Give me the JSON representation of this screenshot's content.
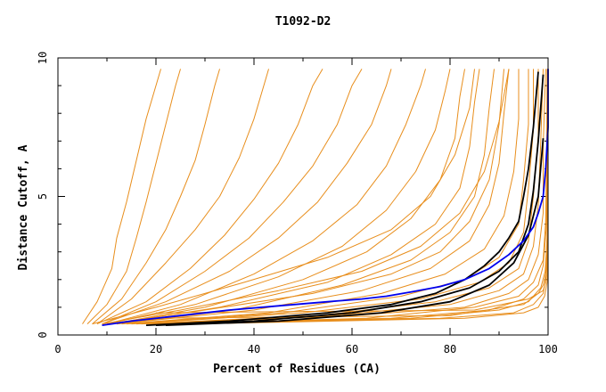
{
  "chart_data": {
    "type": "line",
    "title": "T1092-D2",
    "xlabel": "Percent of Residues (CA)",
    "ylabel": "Distance Cutoff, A",
    "xlim": [
      0,
      100
    ],
    "ylim": [
      0,
      10
    ],
    "x_ticks": [
      0,
      20,
      40,
      60,
      80,
      100
    ],
    "y_ticks": [
      0,
      5,
      10
    ],
    "grid": false,
    "colors": {
      "models": "#e88e1c",
      "highlight_black": "#000000",
      "highlight_blue": "#0000ee"
    },
    "series": [
      {
        "color": "#e88e1c",
        "x": [
          5,
          8,
          11,
          12,
          14,
          16,
          18,
          20,
          21
        ],
        "y": [
          0.4,
          1.2,
          2.4,
          3.5,
          4.8,
          6.3,
          7.8,
          9.0,
          9.6
        ]
      },
      {
        "color": "#e88e1c",
        "x": [
          6,
          10,
          14,
          16,
          18,
          20,
          22,
          24,
          25
        ],
        "y": [
          0.4,
          1.1,
          2.3,
          3.5,
          4.8,
          6.2,
          7.6,
          9.0,
          9.6
        ]
      },
      {
        "color": "#e88e1c",
        "x": [
          7,
          13,
          18,
          22,
          25,
          28,
          30,
          32,
          33
        ],
        "y": [
          0.4,
          1.3,
          2.6,
          3.8,
          5.0,
          6.3,
          7.6,
          9.0,
          9.6
        ]
      },
      {
        "color": "#e88e1c",
        "x": [
          8,
          15,
          22,
          28,
          33,
          37,
          40,
          42,
          43
        ],
        "y": [
          0.4,
          1.3,
          2.6,
          3.8,
          5.0,
          6.4,
          7.8,
          9.0,
          9.6
        ]
      },
      {
        "color": "#e88e1c",
        "x": [
          8,
          18,
          27,
          34,
          40,
          45,
          49,
          52,
          54
        ],
        "y": [
          0.4,
          1.2,
          2.4,
          3.6,
          4.9,
          6.2,
          7.6,
          9.0,
          9.6
        ]
      },
      {
        "color": "#e88e1c",
        "x": [
          9,
          20,
          30,
          39,
          46,
          52,
          57,
          60,
          62
        ],
        "y": [
          0.4,
          1.2,
          2.3,
          3.5,
          4.8,
          6.1,
          7.6,
          9.0,
          9.6
        ]
      },
      {
        "color": "#e88e1c",
        "x": [
          9,
          22,
          35,
          45,
          53,
          59,
          64,
          67,
          68
        ],
        "y": [
          0.4,
          1.2,
          2.3,
          3.5,
          4.8,
          6.2,
          7.6,
          9.0,
          9.6
        ]
      },
      {
        "color": "#e88e1c",
        "x": [
          10,
          25,
          40,
          52,
          61,
          67,
          71,
          74,
          75
        ],
        "y": [
          0.4,
          1.1,
          2.2,
          3.4,
          4.7,
          6.1,
          7.6,
          9.0,
          9.6
        ]
      },
      {
        "color": "#e88e1c",
        "x": [
          10,
          28,
          45,
          58,
          67,
          73,
          77,
          79,
          80
        ],
        "y": [
          0.4,
          1.1,
          2.1,
          3.2,
          4.5,
          5.9,
          7.4,
          8.8,
          9.6
        ]
      },
      {
        "color": "#e88e1c",
        "x": [
          11,
          30,
          50,
          63,
          72,
          78,
          81,
          82,
          83
        ],
        "y": [
          0.4,
          1.0,
          2.0,
          3.0,
          4.2,
          5.6,
          7.1,
          8.6,
          9.6
        ]
      },
      {
        "color": "#e88e1c",
        "x": [
          11,
          33,
          55,
          68,
          77,
          82,
          84,
          85,
          86
        ],
        "y": [
          0.4,
          1.0,
          1.9,
          2.9,
          4.0,
          5.3,
          6.8,
          8.4,
          9.6
        ]
      },
      {
        "color": "#e88e1c",
        "x": [
          12,
          36,
          58,
          72,
          80,
          85,
          87,
          88,
          89
        ],
        "y": [
          0.4,
          0.9,
          1.8,
          2.7,
          3.7,
          5.0,
          6.5,
          8.2,
          9.6
        ]
      },
      {
        "color": "#e88e1c",
        "x": [
          12,
          40,
          62,
          76,
          84,
          88,
          90,
          91,
          92
        ],
        "y": [
          0.4,
          0.9,
          1.6,
          2.4,
          3.4,
          4.7,
          6.2,
          8.0,
          9.6
        ]
      },
      {
        "color": "#e88e1c",
        "x": [
          13,
          43,
          66,
          79,
          87,
          91,
          93,
          94,
          94
        ],
        "y": [
          0.4,
          0.8,
          1.5,
          2.2,
          3.1,
          4.3,
          5.9,
          7.8,
          9.6
        ]
      },
      {
        "color": "#e88e1c",
        "x": [
          14,
          46,
          70,
          83,
          90,
          94,
          95,
          96,
          96
        ],
        "y": [
          0.4,
          0.8,
          1.4,
          2.0,
          2.8,
          4.0,
          5.6,
          7.6,
          9.6
        ]
      },
      {
        "color": "#e88e1c",
        "x": [
          15,
          50,
          74,
          86,
          92,
          95,
          96,
          97,
          97
        ],
        "y": [
          0.4,
          0.8,
          1.3,
          1.9,
          2.6,
          3.7,
          5.3,
          7.4,
          9.6
        ]
      },
      {
        "color": "#e88e1c",
        "x": [
          16,
          53,
          77,
          88,
          94,
          96,
          97,
          98,
          98
        ],
        "y": [
          0.4,
          0.7,
          1.2,
          1.7,
          2.4,
          3.4,
          5.0,
          7.2,
          9.6
        ]
      },
      {
        "color": "#e88e1c",
        "x": [
          17,
          56,
          80,
          90,
          95,
          97,
          98,
          98.5,
          99
        ],
        "y": [
          0.4,
          0.7,
          1.1,
          1.6,
          2.2,
          3.2,
          4.7,
          7.0,
          9.6
        ]
      },
      {
        "color": "#e88e1c",
        "x": [
          18,
          60,
          83,
          92,
          96,
          98,
          99,
          99,
          99.5
        ],
        "y": [
          0.4,
          0.7,
          1.0,
          1.5,
          2.0,
          2.9,
          4.4,
          6.8,
          9.6
        ]
      },
      {
        "color": "#e88e1c",
        "x": [
          19,
          63,
          85,
          94,
          97,
          99,
          99.5,
          99.7,
          99.8
        ],
        "y": [
          0.4,
          0.6,
          1.0,
          1.4,
          1.9,
          2.7,
          4.1,
          6.6,
          9.6
        ]
      },
      {
        "color": "#e88e1c",
        "x": [
          20,
          68,
          88,
          95,
          98,
          99,
          99.6,
          99.8,
          99.9
        ],
        "y": [
          0.4,
          0.6,
          0.9,
          1.3,
          1.8,
          2.5,
          3.8,
          6.4,
          9.6
        ]
      },
      {
        "color": "#e88e1c",
        "x": [
          22,
          72,
          90,
          96,
          98.5,
          99.4,
          99.8,
          99.9,
          100
        ],
        "y": [
          0.4,
          0.6,
          0.9,
          1.2,
          1.7,
          2.3,
          3.5,
          6.2,
          9.6
        ]
      },
      {
        "color": "#e88e1c",
        "x": [
          25,
          78,
          93,
          97,
          99,
          99.6,
          99.9,
          100,
          100
        ],
        "y": [
          0.4,
          0.6,
          0.8,
          1.1,
          1.5,
          2.1,
          3.2,
          6.0,
          9.6
        ]
      },
      {
        "color": "#e88e1c",
        "x": [
          28,
          83,
          95,
          98,
          99.3,
          99.8,
          100,
          100,
          100
        ],
        "y": [
          0.4,
          0.6,
          0.8,
          1.0,
          1.4,
          1.9,
          2.9,
          5.8,
          9.6
        ]
      },
      {
        "color": "#e88e1c",
        "x": [
          18,
          80,
          95,
          98,
          99,
          99.5,
          99.8,
          100
        ],
        "y": [
          0.6,
          0.7,
          1.1,
          1.5,
          1.8,
          2.2,
          3.5,
          9.6
        ]
      },
      {
        "color": "#e88e1c",
        "x": [
          20,
          85,
          96,
          99,
          99.5,
          100,
          100
        ],
        "y": [
          0.8,
          0.9,
          1.3,
          1.6,
          1.9,
          3.0,
          9.6
        ]
      },
      {
        "color": "#e88e1c",
        "x": [
          9,
          25,
          45,
          62,
          74,
          82,
          87,
          90,
          92
        ],
        "y": [
          0.4,
          0.9,
          1.6,
          2.3,
          3.2,
          4.4,
          5.9,
          7.7,
          9.6
        ]
      },
      {
        "color": "#e88e1c",
        "x": [
          10,
          30,
          52,
          68,
          78,
          84,
          88,
          90,
          91
        ],
        "y": [
          0.4,
          0.9,
          1.5,
          2.2,
          3.0,
          4.1,
          5.6,
          7.6,
          9.6
        ]
      },
      {
        "color": "#e88e1c",
        "x": [
          7,
          20,
          38,
          55,
          68,
          76,
          81,
          84,
          85
        ],
        "y": [
          0.4,
          1.0,
          1.9,
          2.8,
          3.8,
          5.0,
          6.5,
          8.2,
          9.6
        ]
      },
      {
        "color": "#000000",
        "x": [
          18,
          35,
          55,
          68,
          77,
          83,
          87,
          90,
          92,
          94,
          95,
          96,
          97,
          98
        ],
        "y": [
          0.35,
          0.5,
          0.8,
          1.1,
          1.5,
          2.0,
          2.5,
          3.0,
          3.5,
          4.1,
          5.0,
          6.0,
          7.5,
          9.5
        ]
      },
      {
        "color": "#000000",
        "x": [
          20,
          40,
          60,
          74,
          84,
          90,
          94,
          96,
          97,
          98,
          99
        ],
        "y": [
          0.35,
          0.5,
          0.8,
          1.2,
          1.7,
          2.3,
          3.0,
          4.0,
          5.2,
          7.0,
          9.4
        ]
      },
      {
        "color": "#000000",
        "x": [
          22,
          45,
          66,
          80,
          88,
          93,
          96,
          98,
          99
        ],
        "y": [
          0.35,
          0.5,
          0.8,
          1.2,
          1.8,
          2.6,
          3.6,
          5.0,
          7.1
        ]
      },
      {
        "color": "#0000ee",
        "x": [
          9,
          15,
          25,
          35,
          45,
          55,
          62,
          67,
          72,
          78,
          83,
          88,
          92,
          95,
          97,
          98,
          99,
          99.5,
          100,
          100
        ],
        "y": [
          0.35,
          0.5,
          0.7,
          0.9,
          1.05,
          1.2,
          1.3,
          1.4,
          1.55,
          1.75,
          2.0,
          2.4,
          2.9,
          3.4,
          3.9,
          4.4,
          5.0,
          6.0,
          7.5,
          9.6
        ]
      }
    ]
  }
}
